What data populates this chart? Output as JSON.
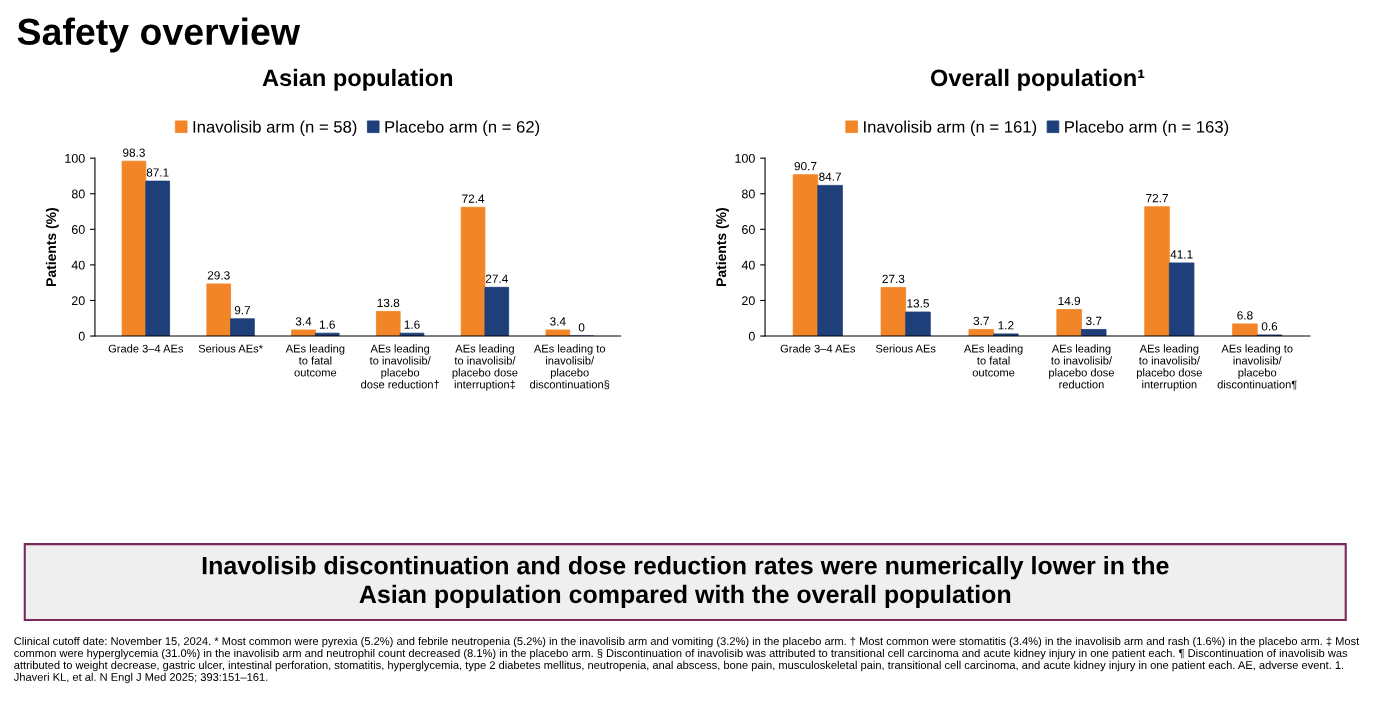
{
  "chart_data": [
    {
      "type": "bar",
      "title": "Asian population",
      "ylabel": "Patients (%)",
      "categories": [
        "Grade 3–4 AEs",
        "Serious AEs*",
        "AEs leading\nto fatal\noutcome",
        "AEs leading\nto inavolisib/\nplacebo\ndose reduction†",
        "AEs leading\nto inavolisib/\nplacebo dose\ninterruption‡",
        "AEs leading to\ninavolisib/\nplacebo\ndiscontinuation§"
      ],
      "series": [
        {
          "name": "Inavolisib arm (n = 58)",
          "color": "#f28528",
          "values": [
            98.3,
            29.3,
            3.4,
            13.8,
            72.4,
            3.4
          ]
        },
        {
          "name": "Placebo arm (n = 62)",
          "color": "#1f3f7a",
          "values": [
            87.1,
            9.7,
            1.6,
            1.6,
            27.4,
            0
          ]
        }
      ],
      "ylim": [
        0,
        100
      ],
      "yticks": [
        0,
        20,
        40,
        60,
        80,
        100
      ],
      "data_labels": true,
      "grid": false,
      "legend": "top",
      "annotations": [
        "Safety overview",
        "Inavolisib discontinuation and dose reduction rates were numerically lower in the\nAsian population compared with the overall population",
        "Clinical cutoff date: November 15, 2024. * Most common were pyrexia (5.2%) and febrile neutropenia (5.2%) in the inavolisib arm and vomiting (3.2%) in the placebo arm. † Most common were stomatitis (3.4%) in the inavolisib arm and rash (1.6%) in the placebo arm. ‡ Most common were hyperglycemia (31.0%) in the inavolisib arm and neutrophil count decreased (8.1%) in the placebo arm. § Discontinuation of inavolisib was attributed to transitional cell carcinoma and acute kidney injury in one patient each. ¶ Discontinuation of inavolisib was attributed to weight decrease, gastric ulcer, intestinal perforation, stomatitis, hyperglycemia, type 2 diabetes mellitus, neutropenia, anal abscess, bone pain, musculoskeletal pain, transitional cell carcinoma, and acute kidney injury in one patient each. AE, adverse event. 1. Jhaveri KL, et al. N Engl J Med 2025; 393:151–161."
      ]
    },
    {
      "type": "bar",
      "title": "Overall population¹",
      "ylabel": "Patients (%)",
      "categories": [
        "Grade 3–4 AEs",
        "Serious AEs",
        "AEs leading\nto fatal\noutcome",
        "AEs leading\nto inavolisib/\nplacebo dose\nreduction",
        "AEs leading\nto inavolisib/\nplacebo dose\ninterruption",
        "AEs leading to\ninavolisib/\nplacebo\ndiscontinuation¶"
      ],
      "series": [
        {
          "name": "Inavolisib arm (n = 161)",
          "color": "#f28528",
          "values": [
            90.7,
            27.3,
            3.7,
            14.9,
            72.7,
            6.8
          ]
        },
        {
          "name": "Placebo arm (n = 163)",
          "color": "#1f3f7a",
          "values": [
            84.7,
            13.5,
            1.2,
            3.7,
            41.1,
            0.6
          ]
        }
      ],
      "ylim": [
        0,
        100
      ],
      "yticks": [
        0,
        20,
        40,
        60,
        80,
        100
      ],
      "data_labels": true,
      "grid": false,
      "legend": "top"
    }
  ]
}
